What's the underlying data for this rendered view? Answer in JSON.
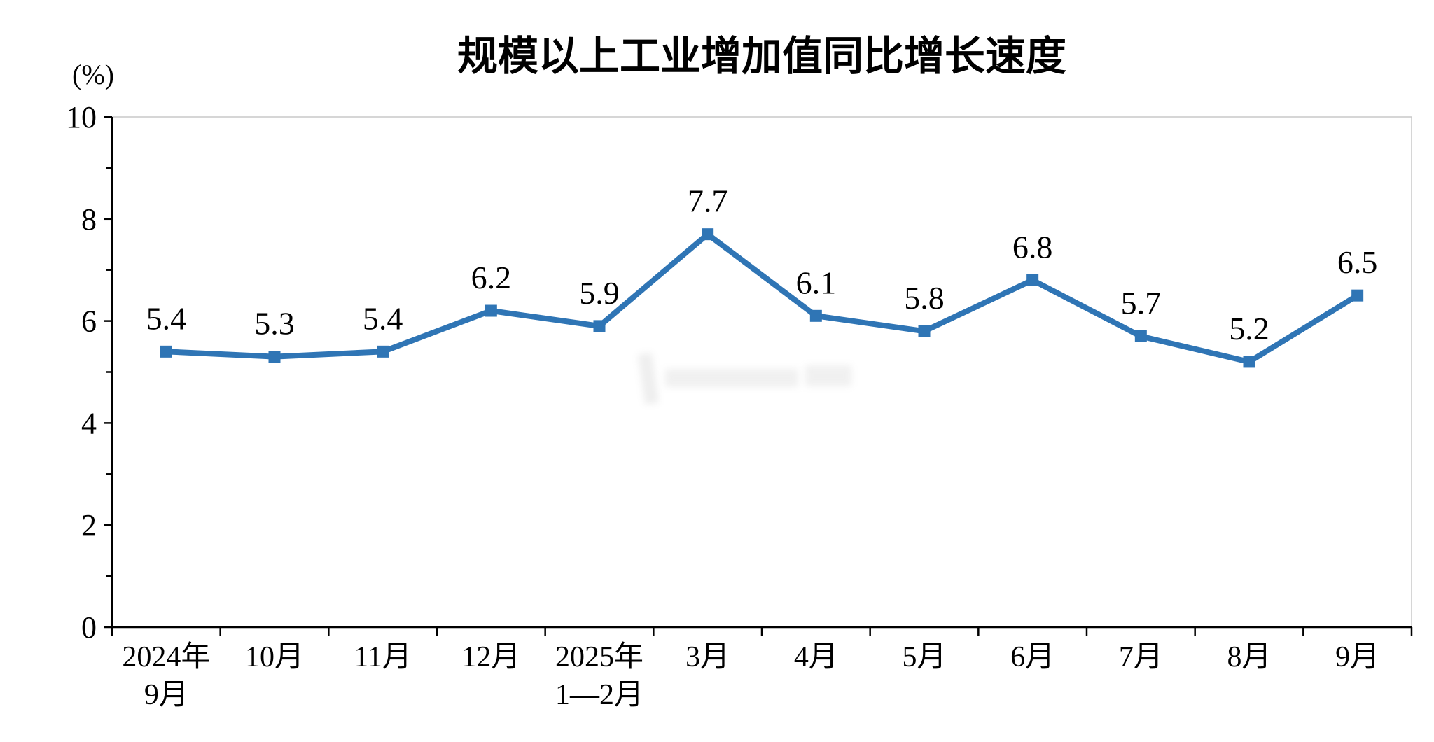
{
  "page": {
    "background": "#ffffff"
  },
  "chart_data": {
    "type": "line",
    "title": "规模以上工业增加值同比增长速度",
    "unit_label": "(%)",
    "categories": [
      {
        "line1": "2024年",
        "line2": "9月"
      },
      {
        "line1": "10月",
        "line2": ""
      },
      {
        "line1": "11月",
        "line2": ""
      },
      {
        "line1": "12月",
        "line2": ""
      },
      {
        "line1": "2025年",
        "line2": "1—2月"
      },
      {
        "line1": "3月",
        "line2": ""
      },
      {
        "line1": "4月",
        "line2": ""
      },
      {
        "line1": "5月",
        "line2": ""
      },
      {
        "line1": "6月",
        "line2": ""
      },
      {
        "line1": "7月",
        "line2": ""
      },
      {
        "line1": "8月",
        "line2": ""
      },
      {
        "line1": "9月",
        "line2": ""
      }
    ],
    "values": [
      5.4,
      5.3,
      5.4,
      6.2,
      5.9,
      7.7,
      6.1,
      5.8,
      6.8,
      5.7,
      5.2,
      6.5
    ],
    "ylim": [
      0,
      10
    ],
    "yticks": [
      0,
      2,
      4,
      6,
      8,
      10
    ],
    "grid": false,
    "legend": "none",
    "line_color": "#2F75B5",
    "marker": "square",
    "axis_color": "#000000",
    "plot_border_color": "#c9c9c9",
    "label_color": "#000000"
  }
}
